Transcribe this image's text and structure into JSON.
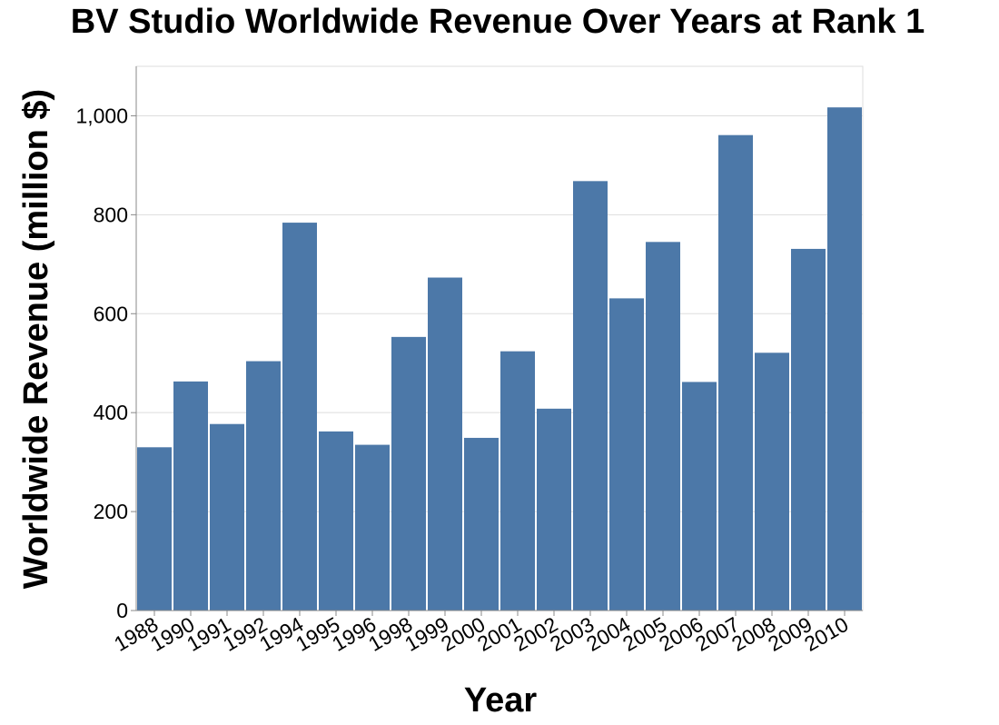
{
  "chart_data": {
    "type": "bar",
    "title": "BV Studio Worldwide Revenue Over Years at Rank 1",
    "xlabel": "Year",
    "ylabel": "Worldwide Revenue (million $)",
    "categories": [
      "1988",
      "1990",
      "1991",
      "1992",
      "1994",
      "1995",
      "1996",
      "1998",
      "1999",
      "2000",
      "2001",
      "2002",
      "2003",
      "2004",
      "2005",
      "2006",
      "2007",
      "2008",
      "2009",
      "2010"
    ],
    "values": [
      330,
      463,
      377,
      504,
      784,
      362,
      335,
      553,
      673,
      349,
      524,
      408,
      868,
      631,
      745,
      462,
      961,
      521,
      731,
      1017
    ],
    "ylim": [
      0,
      1100
    ],
    "yticks": [
      0,
      200,
      400,
      600,
      800,
      1000
    ],
    "ytick_labels": [
      "0",
      "200",
      "400",
      "600",
      "800",
      "1,000"
    ],
    "bar_color": "#4c78a8",
    "grid": true
  }
}
